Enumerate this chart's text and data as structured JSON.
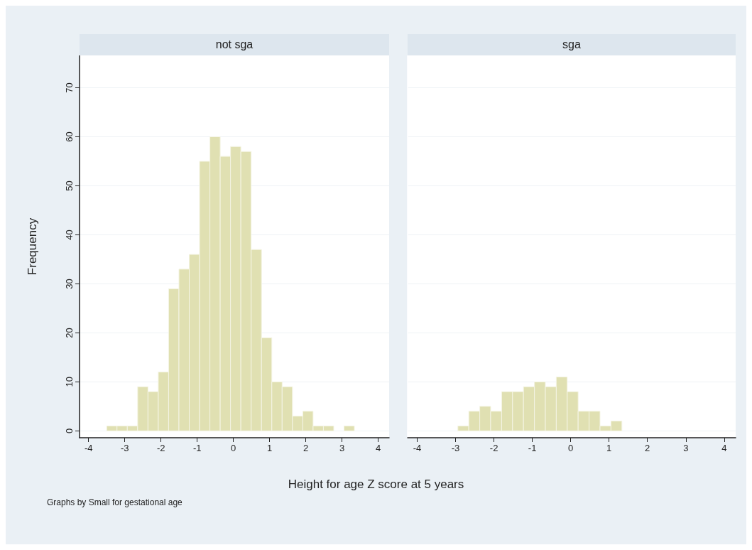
{
  "chart_data": [
    {
      "type": "histogram",
      "title": "not sga",
      "ylabel": "Frequency",
      "xlabel": "Height for age Z score at 5 years",
      "annotations": [
        "Graphs by Small for gestational age"
      ],
      "color": "#e0e0b2",
      "bins": [
        -3.5,
        -3.215,
        -2.93,
        -2.645,
        -2.36,
        -2.075,
        -1.79,
        -1.505,
        -1.22,
        -0.935,
        -0.65,
        -0.365,
        -0.08,
        0.205,
        0.49,
        0.775,
        1.06,
        1.345,
        1.63,
        1.915,
        2.2,
        2.485,
        2.77,
        3.055,
        3.34
      ],
      "values": [
        1,
        1,
        1,
        9,
        8,
        12,
        29,
        33,
        36,
        55,
        60,
        56,
        58,
        57,
        37,
        19,
        10,
        9,
        3,
        4,
        1,
        1,
        0,
        1
      ],
      "xlim": [
        -4.25,
        4.3
      ],
      "xticks": [
        -4,
        -3,
        -2,
        -1,
        0,
        1,
        2,
        3,
        4
      ],
      "ylim": [
        -1.4,
        76.6
      ],
      "yticks": [
        0,
        10,
        20,
        30,
        40,
        50,
        60,
        70
      ],
      "grid": "y"
    },
    {
      "type": "histogram",
      "title": "sga",
      "color": "#e0e0b2",
      "tick_labels": "x",
      "bins": [
        -2.94,
        -2.655,
        -2.37,
        -2.085,
        -1.8,
        -1.515,
        -1.23,
        -0.945,
        -0.66,
        -0.375,
        -0.09,
        0.195,
        0.48,
        0.765,
        1.05,
        1.335
      ],
      "values": [
        1,
        4,
        5,
        4,
        8,
        8,
        9,
        10,
        9,
        11,
        8,
        4,
        4,
        1,
        2
      ],
      "xlim": [
        -4.25,
        4.3
      ],
      "xticks": [
        -4,
        -3,
        -2,
        -1,
        0,
        1,
        2,
        3,
        4
      ],
      "ylim": [
        -1.4,
        76.6
      ],
      "yticks": [
        0,
        10,
        20,
        30,
        40,
        50,
        60,
        70
      ],
      "grid": "y"
    }
  ]
}
